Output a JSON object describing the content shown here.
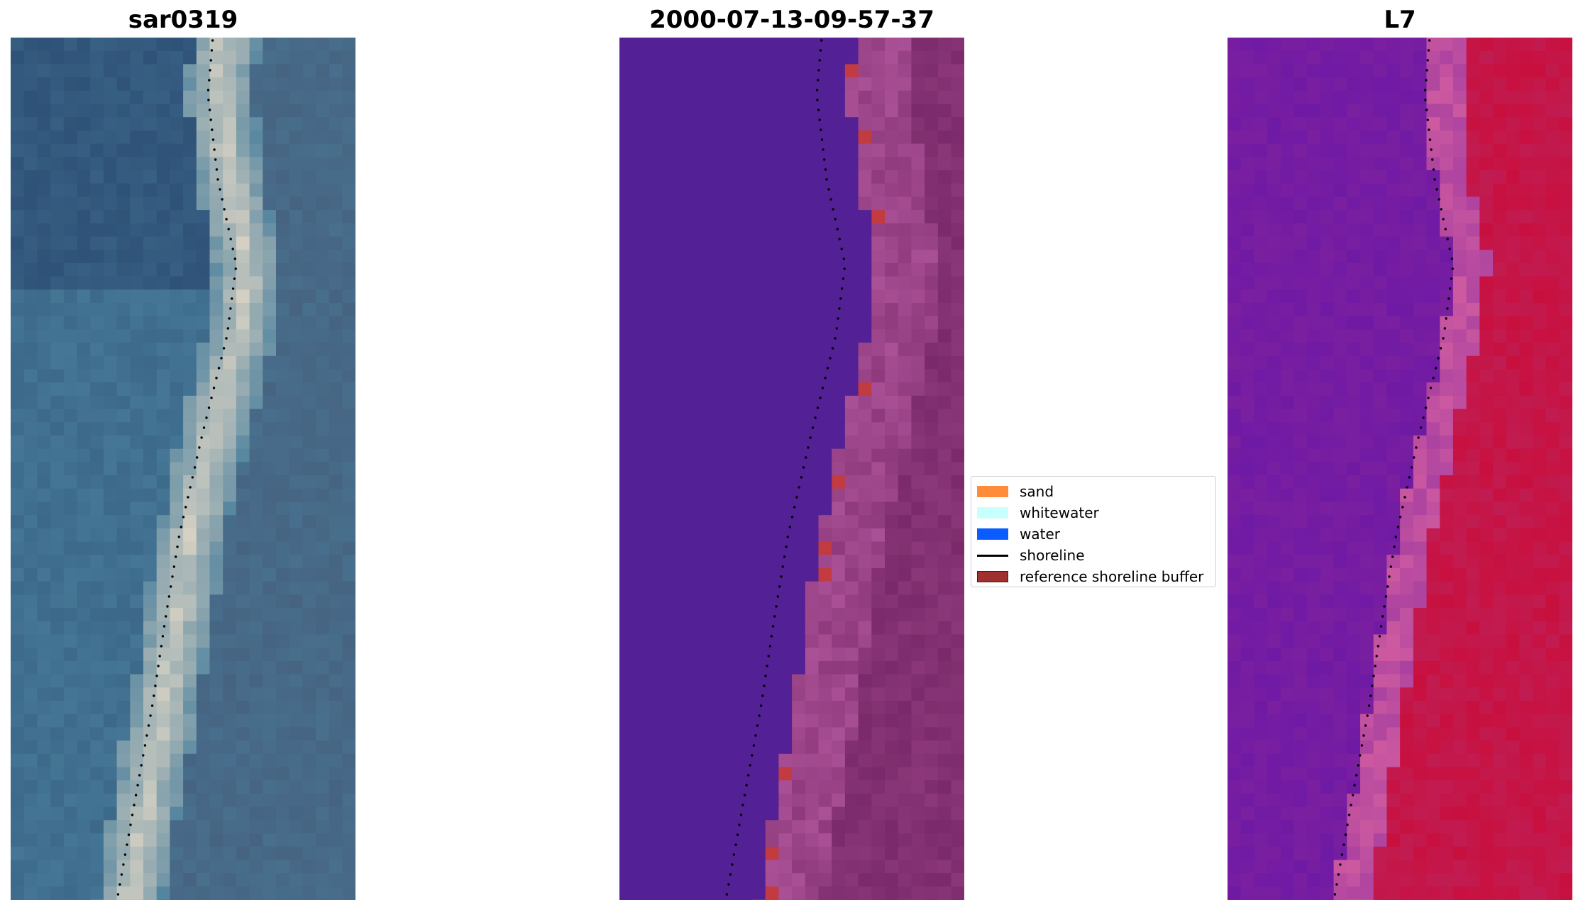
{
  "panels": [
    {
      "title": "sar0319"
    },
    {
      "title": "2000-07-13-09-57-37"
    },
    {
      "title": "L7"
    }
  ],
  "legend": {
    "items": [
      {
        "label": "sand",
        "color": "#ff8c38",
        "kind": "patch"
      },
      {
        "label": "whitewater",
        "color": "#c8ffff",
        "kind": "patch"
      },
      {
        "label": "water",
        "color": "#0a5cff",
        "kind": "patch"
      },
      {
        "label": "shoreline",
        "color": "#000000",
        "kind": "line"
      },
      {
        "label": "reference shoreline buffer",
        "color": "#a0302e",
        "kind": "patch"
      }
    ]
  },
  "colors": {
    "rgb_water": "#4a7f9c",
    "rgb_sand": "#d8d2c4",
    "class_water": "#532195",
    "class_land": "#7a2a6a",
    "class_buffer": "#c13b40",
    "ndwi_land": "#c8103f",
    "ndwi_water": "#7a1fa0"
  }
}
